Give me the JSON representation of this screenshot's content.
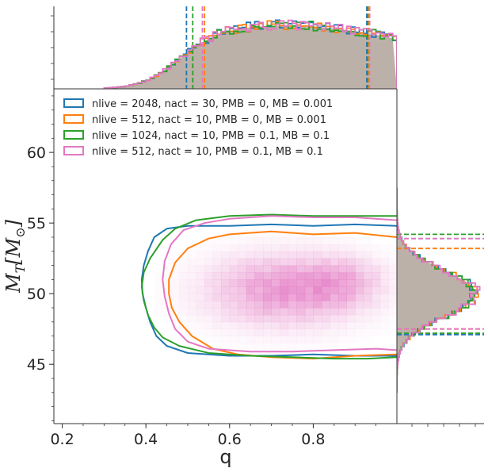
{
  "chart_data": {
    "type": "corner-hist2d",
    "xlabel": "q",
    "ylabel": "M_T[M_⊙]",
    "ylabel_parts": {
      "main": "M",
      "sub": "T",
      "bracket_open": "[M",
      "sub2": "⊙",
      "bracket_close": "]"
    },
    "xlim": [
      0.18,
      1.0
    ],
    "ylim": [
      40.8,
      64.5
    ],
    "x_ticks": [
      0.2,
      0.4,
      0.6,
      0.8
    ],
    "x_tick_labels": [
      "0.2",
      "0.4",
      "0.6",
      "0.8"
    ],
    "y_ticks": [
      45,
      50,
      55,
      60
    ],
    "y_tick_labels": [
      "45",
      "50",
      "55",
      "60"
    ],
    "legend_position": "top-left",
    "series": [
      {
        "name": "nlive = 2048, nact = 30, PMB = 0, MB = 0.001",
        "color": "#1f77b4",
        "q_quantiles": [
          0.497,
          0.928
        ],
        "mt_quantiles": [
          47.1,
          53.9
        ],
        "contour": [
          [
            1.0,
            54.8
          ],
          [
            0.9,
            54.9
          ],
          [
            0.8,
            54.8
          ],
          [
            0.7,
            54.9
          ],
          [
            0.6,
            54.8
          ],
          [
            0.5,
            54.8
          ],
          [
            0.45,
            54.6
          ],
          [
            0.42,
            54.0
          ],
          [
            0.405,
            53.0
          ],
          [
            0.395,
            52.0
          ],
          [
            0.39,
            51.0
          ],
          [
            0.392,
            50.0
          ],
          [
            0.4,
            49.0
          ],
          [
            0.41,
            48.0
          ],
          [
            0.425,
            47.0
          ],
          [
            0.45,
            46.3
          ],
          [
            0.5,
            45.8
          ],
          [
            0.6,
            45.6
          ],
          [
            0.7,
            45.6
          ],
          [
            0.8,
            45.7
          ],
          [
            0.9,
            45.6
          ],
          [
            1.0,
            45.6
          ]
        ]
      },
      {
        "name": "nlive  = 512, nact = 10, PMB = 0, MB = 0.001",
        "color": "#ff7f0e",
        "q_quantiles": [
          0.54,
          0.932
        ],
        "mt_quantiles": [
          47.5,
          53.2
        ],
        "contour": [
          [
            1.0,
            54.0
          ],
          [
            0.9,
            54.3
          ],
          [
            0.8,
            54.2
          ],
          [
            0.7,
            54.4
          ],
          [
            0.6,
            54.2
          ],
          [
            0.55,
            53.9
          ],
          [
            0.5,
            53.2
          ],
          [
            0.47,
            52.2
          ],
          [
            0.455,
            51.0
          ],
          [
            0.455,
            50.0
          ],
          [
            0.462,
            49.0
          ],
          [
            0.48,
            48.0
          ],
          [
            0.51,
            47.0
          ],
          [
            0.56,
            46.1
          ],
          [
            0.62,
            45.7
          ],
          [
            0.7,
            45.5
          ],
          [
            0.8,
            45.4
          ],
          [
            0.9,
            45.6
          ],
          [
            1.0,
            45.7
          ]
        ]
      },
      {
        "name": "nlive = 1024, nact = 10, PMB = 0.1, MB = 0.1",
        "color": "#2ca02c",
        "q_quantiles": [
          0.512,
          0.93
        ],
        "mt_quantiles": [
          47.2,
          54.2
        ],
        "contour": [
          [
            1.0,
            55.5
          ],
          [
            0.9,
            55.5
          ],
          [
            0.8,
            55.5
          ],
          [
            0.7,
            55.6
          ],
          [
            0.6,
            55.5
          ],
          [
            0.52,
            55.2
          ],
          [
            0.47,
            54.6
          ],
          [
            0.44,
            53.8
          ],
          [
            0.41,
            52.5
          ],
          [
            0.395,
            51.5
          ],
          [
            0.39,
            50.5
          ],
          [
            0.395,
            49.5
          ],
          [
            0.405,
            48.5
          ],
          [
            0.42,
            47.6
          ],
          [
            0.44,
            46.9
          ],
          [
            0.48,
            46.3
          ],
          [
            0.55,
            45.8
          ],
          [
            0.65,
            45.6
          ],
          [
            0.75,
            45.5
          ],
          [
            0.85,
            45.4
          ],
          [
            0.93,
            45.4
          ],
          [
            1.0,
            45.5
          ]
        ]
      },
      {
        "name": "nlive = 512, nact = 10, PMB = 0.1, MB = 0.1",
        "color": "#e377c2",
        "q_quantiles": [
          0.535,
          0.935
        ],
        "mt_quantiles": [
          47.5,
          53.9
        ],
        "contour": [
          [
            1.0,
            55.2
          ],
          [
            0.9,
            55.4
          ],
          [
            0.8,
            55.4
          ],
          [
            0.7,
            55.5
          ],
          [
            0.6,
            55.3
          ],
          [
            0.54,
            55.0
          ],
          [
            0.49,
            54.5
          ],
          [
            0.46,
            53.5
          ],
          [
            0.445,
            52.3
          ],
          [
            0.44,
            51.0
          ],
          [
            0.445,
            49.8
          ],
          [
            0.455,
            48.6
          ],
          [
            0.47,
            47.5
          ],
          [
            0.5,
            46.6
          ],
          [
            0.55,
            46.1
          ],
          [
            0.65,
            45.9
          ],
          [
            0.75,
            45.9
          ],
          [
            0.85,
            46.0
          ],
          [
            0.95,
            46.1
          ],
          [
            1.0,
            46.0
          ]
        ]
      }
    ],
    "heatmap_peak": {
      "q": 0.72,
      "mt": 50.0,
      "color": "#e377c2"
    }
  }
}
